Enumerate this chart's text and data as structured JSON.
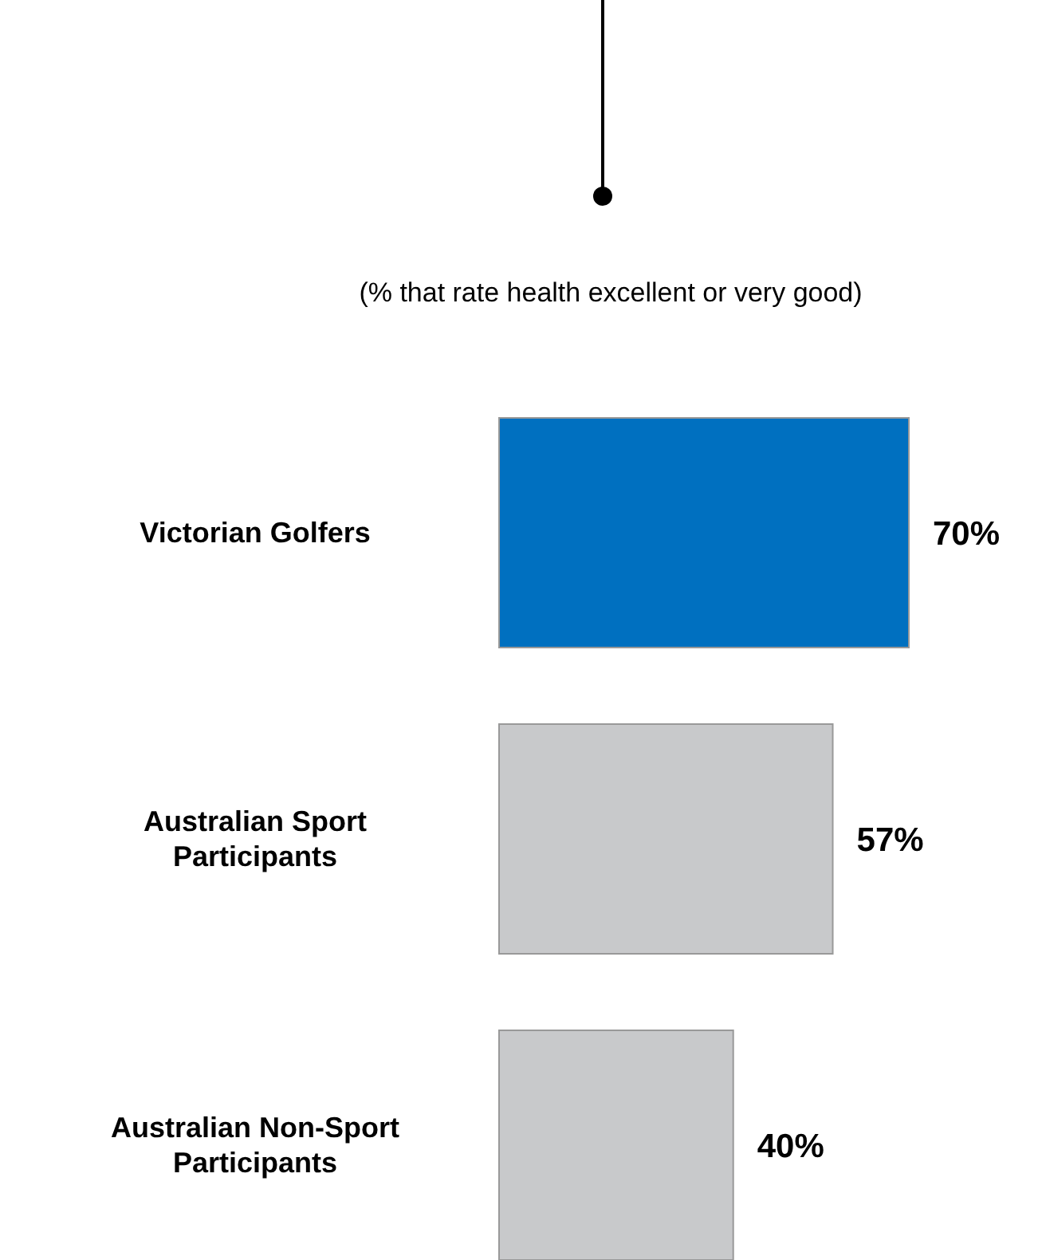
{
  "chart_data": {
    "type": "bar",
    "orientation": "horizontal",
    "title": "(% that rate health excellent or very good)",
    "categories": [
      "Victorian Golfers",
      "Australian Sport Participants",
      "Australian Non-Sport Participants"
    ],
    "values": [
      70,
      57,
      40
    ],
    "colors": [
      "#0070c0",
      "#c8c9cb",
      "#c8c9cb"
    ],
    "value_labels": [
      "70%",
      "57%",
      "40%"
    ],
    "grid": false,
    "legend": false
  }
}
